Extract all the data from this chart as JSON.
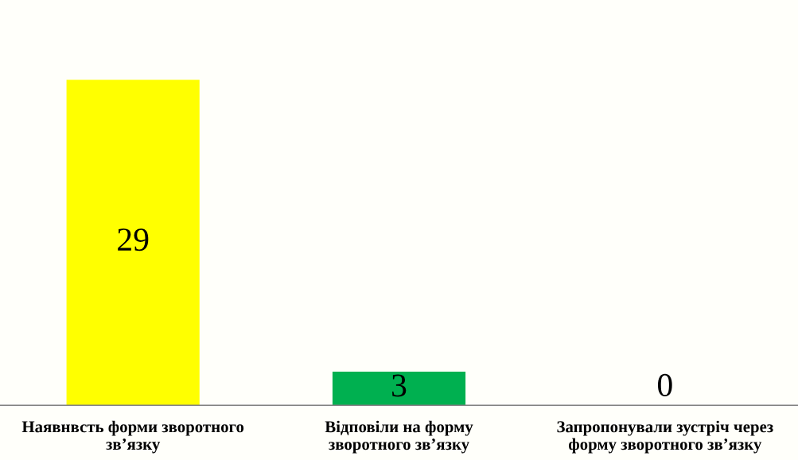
{
  "chart_data": {
    "type": "bar",
    "categories": [
      "Наявнвсть форми зворотного\nзв’язку",
      "Відповіли на форму\nзворотного зв’язку",
      "Запропонували зустріч через\nформу зворотного зв’язку"
    ],
    "values": [
      29,
      3,
      0
    ],
    "colors": [
      "#ffff00",
      "#00b050",
      null
    ],
    "data_labels": true,
    "tick_labels": "x"
  }
}
